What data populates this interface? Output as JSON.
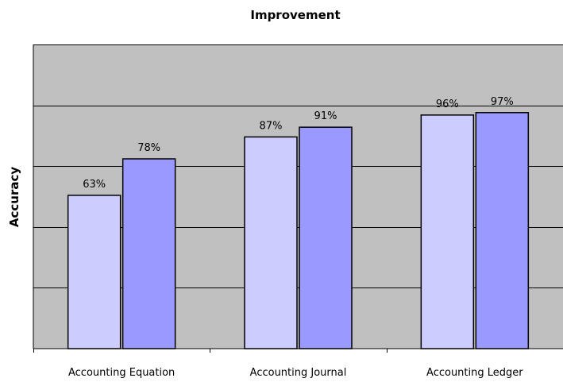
{
  "colors": {
    "plot_background": "#c0c0c0",
    "gridline": "#000000",
    "series_1": "#ccccff",
    "series_2": "#9999ff",
    "bar_border": "#000000"
  },
  "chart_data": {
    "type": "bar",
    "title": "Improvement",
    "xlabel": "",
    "ylabel": "Accuracy",
    "categories": [
      "Accounting Equation",
      "Accounting Journal",
      "Accounting Ledger"
    ],
    "series": [
      {
        "values": [
          63,
          87,
          96
        ],
        "labels": [
          "63%",
          "87%",
          "96%"
        ]
      },
      {
        "values": [
          78,
          91,
          97
        ],
        "labels": [
          "78%",
          "91%",
          "97%"
        ]
      }
    ],
    "ylim": [
      0,
      125
    ],
    "gridlines": [
      0,
      25,
      50,
      75,
      100,
      125
    ],
    "grid": true,
    "legend": "none",
    "y_tick_labels_visible": false
  }
}
